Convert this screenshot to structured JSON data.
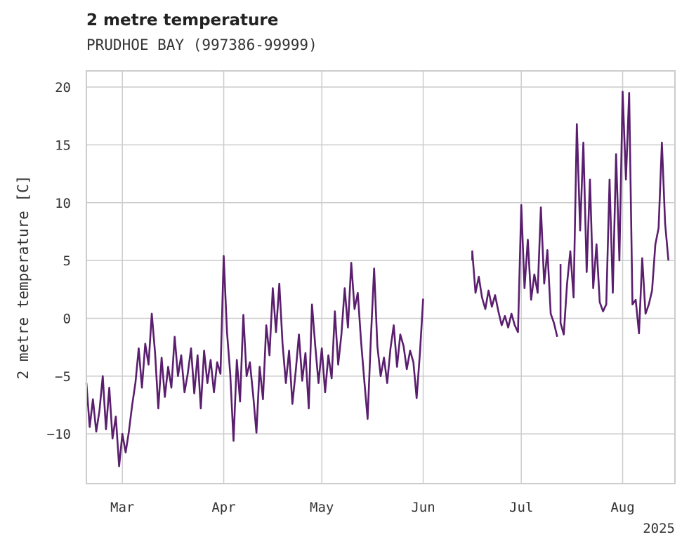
{
  "chart_data": {
    "type": "line",
    "title": "2 metre temperature",
    "subtitle": "PRUDHOE BAY (997386-99999)",
    "xlabel": "",
    "ylabel": "2 metre temperature [C]",
    "year_label": "2025",
    "xlim": [
      "2025-02-18",
      "2025-08-17"
    ],
    "ylim": [
      -14.3,
      21.4
    ],
    "x_ticks": [
      {
        "date": "2025-03-01",
        "label": "Mar"
      },
      {
        "date": "2025-04-01",
        "label": "Apr"
      },
      {
        "date": "2025-05-01",
        "label": "May"
      },
      {
        "date": "2025-06-01",
        "label": "Jun"
      },
      {
        "date": "2025-07-01",
        "label": "Jul"
      },
      {
        "date": "2025-08-01",
        "label": "Aug"
      }
    ],
    "y_ticks": [
      {
        "value": 20,
        "label": "20"
      },
      {
        "value": 15,
        "label": "15"
      },
      {
        "value": 10,
        "label": "10"
      },
      {
        "value": 5,
        "label": "5"
      },
      {
        "value": 0,
        "label": "0"
      },
      {
        "value": -5,
        "label": "−5"
      },
      {
        "value": -10,
        "label": "−10"
      }
    ],
    "grid": true,
    "line_color": "#5a1e6e",
    "series": [
      {
        "segments": [
          [
            [
              "2025-02-18",
              -5.6
            ],
            [
              "2025-02-19",
              -9.4
            ],
            [
              "2025-02-20",
              -7.0
            ],
            [
              "2025-02-21",
              -9.8
            ],
            [
              "2025-02-22",
              -8.0
            ],
            [
              "2025-02-23",
              -5.0
            ],
            [
              "2025-02-24",
              -9.6
            ],
            [
              "2025-02-25",
              -6.0
            ],
            [
              "2025-02-26",
              -10.4
            ],
            [
              "2025-02-27",
              -8.5
            ],
            [
              "2025-02-28",
              -12.8
            ],
            [
              "2025-03-01",
              -10.0
            ],
            [
              "2025-03-02",
              -11.6
            ],
            [
              "2025-03-03",
              -9.8
            ],
            [
              "2025-03-04",
              -7.5
            ],
            [
              "2025-03-05",
              -5.6
            ],
            [
              "2025-03-06",
              -2.6
            ],
            [
              "2025-03-07",
              -6.0
            ],
            [
              "2025-03-08",
              -2.2
            ],
            [
              "2025-03-09",
              -4.0
            ],
            [
              "2025-03-10",
              0.4
            ],
            [
              "2025-03-11",
              -3.0
            ],
            [
              "2025-03-12",
              -7.8
            ],
            [
              "2025-03-13",
              -3.4
            ],
            [
              "2025-03-14",
              -6.8
            ],
            [
              "2025-03-15",
              -4.2
            ],
            [
              "2025-03-16",
              -6.0
            ],
            [
              "2025-03-17",
              -1.6
            ],
            [
              "2025-03-18",
              -5.0
            ],
            [
              "2025-03-19",
              -3.2
            ],
            [
              "2025-03-20",
              -6.4
            ],
            [
              "2025-03-21",
              -4.8
            ],
            [
              "2025-03-22",
              -2.6
            ],
            [
              "2025-03-23",
              -6.5
            ],
            [
              "2025-03-24",
              -3.2
            ],
            [
              "2025-03-25",
              -7.8
            ],
            [
              "2025-03-26",
              -2.8
            ],
            [
              "2025-03-27",
              -5.6
            ],
            [
              "2025-03-28",
              -3.6
            ],
            [
              "2025-03-29",
              -6.4
            ],
            [
              "2025-03-30",
              -3.8
            ],
            [
              "2025-03-31",
              -4.8
            ],
            [
              "2025-04-01",
              5.4
            ],
            [
              "2025-04-02",
              -1.2
            ],
            [
              "2025-04-03",
              -4.8
            ],
            [
              "2025-04-04",
              -10.6
            ],
            [
              "2025-04-05",
              -3.6
            ],
            [
              "2025-04-06",
              -7.2
            ],
            [
              "2025-04-07",
              0.3
            ],
            [
              "2025-04-08",
              -5.0
            ],
            [
              "2025-04-09",
              -3.8
            ],
            [
              "2025-04-10",
              -6.6
            ],
            [
              "2025-04-11",
              -9.9
            ],
            [
              "2025-04-12",
              -4.2
            ],
            [
              "2025-04-13",
              -7.0
            ],
            [
              "2025-04-14",
              -0.6
            ],
            [
              "2025-04-15",
              -3.2
            ],
            [
              "2025-04-16",
              2.6
            ],
            [
              "2025-04-17",
              -1.2
            ],
            [
              "2025-04-18",
              3.0
            ],
            [
              "2025-04-19",
              -2.2
            ],
            [
              "2025-04-20",
              -5.6
            ],
            [
              "2025-04-21",
              -2.8
            ],
            [
              "2025-04-22",
              -7.4
            ],
            [
              "2025-04-23",
              -4.6
            ],
            [
              "2025-04-24",
              -1.4
            ],
            [
              "2025-04-25",
              -5.4
            ],
            [
              "2025-04-26",
              -3.0
            ],
            [
              "2025-04-27",
              -7.8
            ],
            [
              "2025-04-28",
              1.2
            ],
            [
              "2025-04-29",
              -2.4
            ],
            [
              "2025-04-30",
              -5.6
            ],
            [
              "2025-05-01",
              -2.6
            ],
            [
              "2025-05-02",
              -6.4
            ],
            [
              "2025-05-03",
              -3.2
            ],
            [
              "2025-05-04",
              -5.2
            ],
            [
              "2025-05-05",
              0.6
            ],
            [
              "2025-05-06",
              -4.0
            ],
            [
              "2025-05-07",
              -1.4
            ],
            [
              "2025-05-08",
              2.6
            ],
            [
              "2025-05-09",
              -0.8
            ],
            [
              "2025-05-10",
              4.8
            ],
            [
              "2025-05-11",
              0.8
            ],
            [
              "2025-05-12",
              2.2
            ],
            [
              "2025-05-13",
              -2.0
            ],
            [
              "2025-05-14",
              -5.4
            ],
            [
              "2025-05-15",
              -8.7
            ],
            [
              "2025-05-16",
              -1.8
            ],
            [
              "2025-05-17",
              4.3
            ],
            [
              "2025-05-18",
              -2.4
            ],
            [
              "2025-05-19",
              -5.0
            ],
            [
              "2025-05-20",
              -3.4
            ],
            [
              "2025-05-21",
              -5.6
            ],
            [
              "2025-05-22",
              -2.6
            ],
            [
              "2025-05-23",
              -0.6
            ],
            [
              "2025-05-24",
              -4.2
            ],
            [
              "2025-05-25",
              -1.4
            ],
            [
              "2025-05-26",
              -2.4
            ],
            [
              "2025-05-27",
              -4.4
            ],
            [
              "2025-05-28",
              -2.8
            ],
            [
              "2025-05-29",
              -3.8
            ],
            [
              "2025-05-30",
              -6.9
            ],
            [
              "2025-05-31",
              -3.0
            ],
            [
              "2025-06-01",
              1.7
            ]
          ],
          [
            [
              "2025-06-16",
              5.0
            ],
            [
              "2025-06-16",
              5.8
            ],
            [
              "2025-06-17",
              2.2
            ],
            [
              "2025-06-18",
              3.6
            ],
            [
              "2025-06-19",
              1.8
            ],
            [
              "2025-06-20",
              0.8
            ],
            [
              "2025-06-21",
              2.4
            ],
            [
              "2025-06-22",
              1.0
            ],
            [
              "2025-06-23",
              2.0
            ],
            [
              "2025-06-24",
              0.6
            ],
            [
              "2025-06-25",
              -0.6
            ],
            [
              "2025-06-26",
              0.2
            ],
            [
              "2025-06-27",
              -0.8
            ],
            [
              "2025-06-28",
              0.4
            ],
            [
              "2025-06-29",
              -0.6
            ],
            [
              "2025-06-30",
              -1.2
            ],
            [
              "2025-07-01",
              9.8
            ],
            [
              "2025-07-02",
              2.6
            ],
            [
              "2025-07-03",
              6.8
            ],
            [
              "2025-07-04",
              1.6
            ],
            [
              "2025-07-05",
              3.8
            ],
            [
              "2025-07-06",
              2.2
            ],
            [
              "2025-07-07",
              9.6
            ],
            [
              "2025-07-08",
              3.0
            ],
            [
              "2025-07-09",
              5.9
            ],
            [
              "2025-07-10",
              0.4
            ],
            [
              "2025-07-11",
              -0.4
            ],
            [
              "2025-07-12",
              -1.6
            ]
          ],
          [
            [
              "2025-07-13",
              4.7
            ],
            [
              "2025-07-13",
              -0.4
            ],
            [
              "2025-07-14",
              -1.4
            ],
            [
              "2025-07-15",
              3.0
            ],
            [
              "2025-07-16",
              5.8
            ],
            [
              "2025-07-17",
              1.8
            ],
            [
              "2025-07-18",
              16.8
            ],
            [
              "2025-07-19",
              7.6
            ],
            [
              "2025-07-20",
              15.2
            ],
            [
              "2025-07-21",
              4.0
            ],
            [
              "2025-07-22",
              12.0
            ],
            [
              "2025-07-23",
              2.6
            ],
            [
              "2025-07-24",
              6.4
            ],
            [
              "2025-07-25",
              1.4
            ],
            [
              "2025-07-26",
              0.6
            ],
            [
              "2025-07-27",
              1.2
            ],
            [
              "2025-07-28",
              12.0
            ],
            [
              "2025-07-29",
              2.2
            ],
            [
              "2025-07-30",
              14.2
            ],
            [
              "2025-07-31",
              5.0
            ],
            [
              "2025-08-01",
              19.6
            ],
            [
              "2025-08-02",
              12.0
            ],
            [
              "2025-08-03",
              19.5
            ],
            [
              "2025-08-04",
              1.2
            ],
            [
              "2025-08-05",
              1.6
            ],
            [
              "2025-08-06",
              -1.3
            ],
            [
              "2025-08-07",
              5.2
            ],
            [
              "2025-08-08",
              0.4
            ],
            [
              "2025-08-09",
              1.2
            ],
            [
              "2025-08-10",
              2.4
            ],
            [
              "2025-08-11",
              6.4
            ],
            [
              "2025-08-12",
              7.8
            ],
            [
              "2025-08-13",
              15.2
            ],
            [
              "2025-08-14",
              8.2
            ],
            [
              "2025-08-15",
              5.0
            ]
          ]
        ]
      }
    ]
  }
}
